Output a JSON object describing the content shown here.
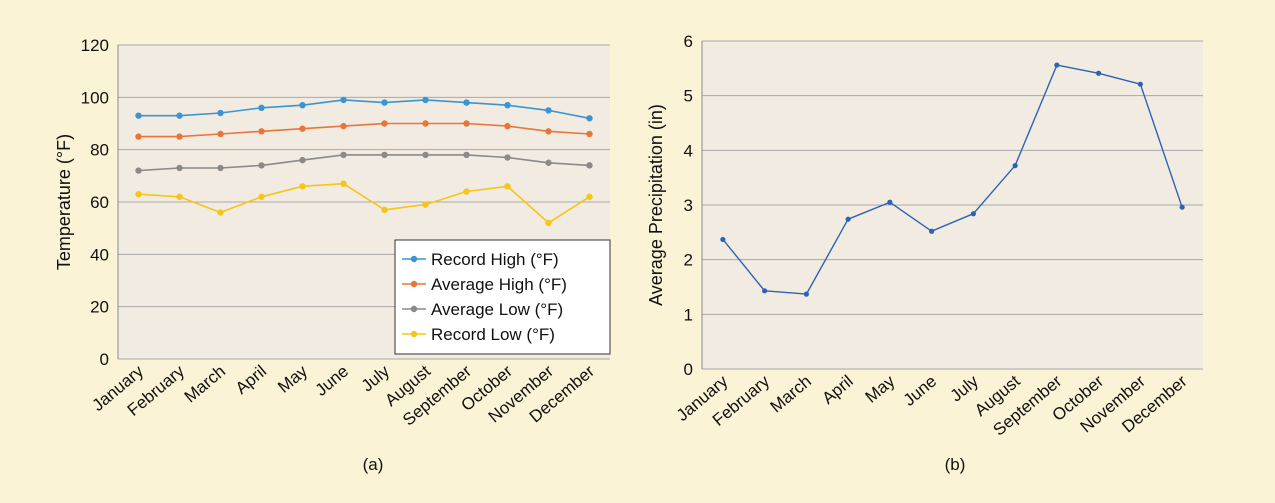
{
  "chart_data": [
    {
      "type": "line",
      "caption": "(a)",
      "title": "",
      "xlabel": "",
      "ylabel": "Temperature (°F)",
      "ylim": [
        0,
        120
      ],
      "yticks": [
        0,
        20,
        40,
        60,
        80,
        100,
        120
      ],
      "grid": true,
      "legend_position": "bottom-right",
      "categories": [
        "January",
        "February",
        "March",
        "April",
        "May",
        "June",
        "July",
        "August",
        "September",
        "October",
        "November",
        "December"
      ],
      "series": [
        {
          "name": "Record High (°F)",
          "color": "#3a95d0",
          "values": [
            93,
            93,
            94,
            96,
            97,
            99,
            98,
            99,
            98,
            97,
            95,
            92
          ]
        },
        {
          "name": "Average High (°F)",
          "color": "#e8763a",
          "values": [
            85,
            85,
            86,
            87,
            88,
            89,
            90,
            90,
            90,
            89,
            87,
            86
          ]
        },
        {
          "name": "Average Low (°F)",
          "color": "#8a8a8a",
          "values": [
            72,
            73,
            73,
            74,
            76,
            78,
            78,
            78,
            78,
            77,
            75,
            74
          ]
        },
        {
          "name": "Record Low (°F)",
          "color": "#f5c518",
          "values": [
            63,
            62,
            56,
            62,
            66,
            67,
            57,
            59,
            64,
            66,
            52,
            62
          ]
        }
      ]
    },
    {
      "type": "line",
      "caption": "(b)",
      "title": "",
      "xlabel": "",
      "ylabel": "Average Precipitation (in)",
      "ylim": [
        0,
        6
      ],
      "yticks": [
        0,
        1,
        2,
        3,
        4,
        5,
        6
      ],
      "grid": true,
      "categories": [
        "January",
        "February",
        "March",
        "April",
        "May",
        "June",
        "July",
        "August",
        "September",
        "October",
        "November",
        "December"
      ],
      "series": [
        {
          "color": "#2c64b3",
          "values": [
            2.37,
            1.43,
            1.37,
            2.74,
            3.05,
            2.52,
            2.84,
            3.72,
            5.56,
            5.41,
            5.21,
            2.96
          ]
        }
      ]
    }
  ],
  "colors": {
    "page_background": "#fbf3d5",
    "plot_background": "#f2ebe2",
    "grid": "#a9a9a9"
  }
}
